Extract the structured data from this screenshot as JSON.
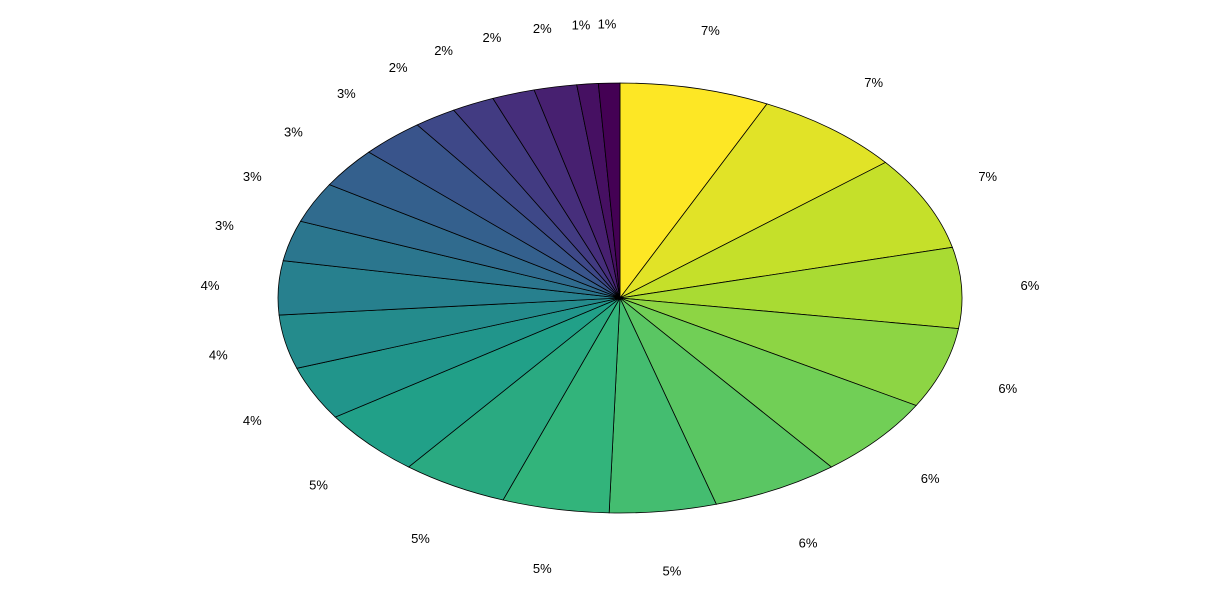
{
  "chart_data": {
    "type": "pie",
    "title": "",
    "direction": "clockwise",
    "start": "top",
    "colormap": "viridis (reversed: yellow first)",
    "colormap_stops": [
      "#fde725",
      "#b5de2b",
      "#6ece58",
      "#35b779",
      "#1f9e89",
      "#26828e",
      "#31688e",
      "#3e4989",
      "#482878",
      "#440154"
    ],
    "labels": [
      "7%",
      "7%",
      "7%",
      "6%",
      "6%",
      "6%",
      "6%",
      "5%",
      "5%",
      "5%",
      "5%",
      "4%",
      "4%",
      "4%",
      "3%",
      "3%",
      "3%",
      "3%",
      "2%",
      "2%",
      "2%",
      "2%",
      "1%",
      "1%"
    ],
    "values": [
      7,
      7,
      7,
      6,
      6,
      6,
      6,
      5,
      5,
      5,
      5,
      4,
      4,
      4,
      3,
      3,
      3,
      3,
      2,
      2,
      2,
      2,
      1,
      1
    ]
  }
}
